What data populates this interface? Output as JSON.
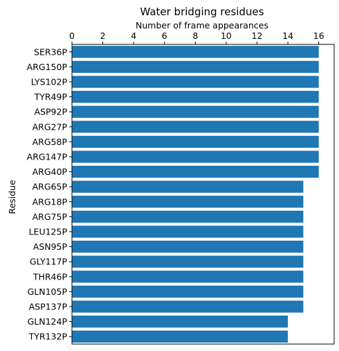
{
  "chart_data": {
    "type": "bar",
    "orientation": "horizontal",
    "title": "Water bridging residues",
    "xlabel": "Number of frame appearances",
    "ylabel": "Residue",
    "xaxis_position": "top",
    "xlim": [
      0,
      17.0
    ],
    "xticks": [
      0,
      2,
      4,
      6,
      8,
      10,
      12,
      14,
      16
    ],
    "grid": false,
    "legend": "none",
    "bar_color": "#1f77b4",
    "categories": [
      "SER36P",
      "ARG150P",
      "LYS102P",
      "TYR49P",
      "ASP92P",
      "ARG27P",
      "ARG58P",
      "ARG147P",
      "ARG40P",
      "ARG65P",
      "ARG18P",
      "ARG75P",
      "LEU125P",
      "ASN95P",
      "GLY117P",
      "THR46P",
      "GLN105P",
      "ASP137P",
      "GLN124P",
      "TYR132P"
    ],
    "values": [
      16,
      16,
      16,
      16,
      16,
      16,
      16,
      16,
      16,
      15,
      15,
      15,
      15,
      15,
      15,
      15,
      15,
      15,
      14,
      14
    ]
  }
}
